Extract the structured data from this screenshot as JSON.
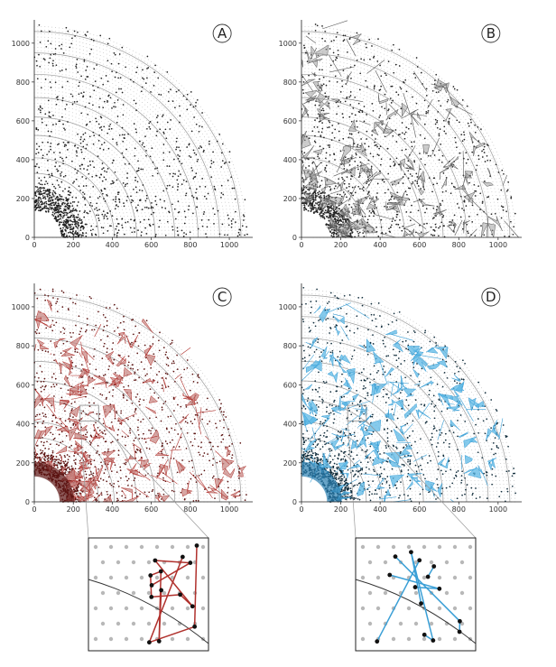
{
  "chart_data": [
    {
      "type": "scatter",
      "panel_label": "A",
      "xlim": [
        0,
        1120
      ],
      "ylim": [
        0,
        1120
      ],
      "x_ticks": [
        0,
        200,
        400,
        600,
        800,
        1000
      ],
      "y_ticks": [
        0,
        200,
        400,
        600,
        800,
        1000
      ],
      "detector_ring_radii": [
        165,
        230,
        330,
        410,
        525,
        620,
        720,
        840,
        950,
        1060
      ],
      "hit_color": "#111111",
      "grid_color": "#bdbdbd",
      "edges_shown": false
    },
    {
      "type": "scatter",
      "panel_label": "B",
      "xlim": [
        0,
        1120
      ],
      "ylim": [
        0,
        1120
      ],
      "x_ticks": [
        0,
        200,
        400,
        600,
        800,
        1000
      ],
      "y_ticks": [
        0,
        200,
        400,
        600,
        800,
        1000
      ],
      "detector_ring_radii": [
        165,
        230,
        330,
        410,
        525,
        620,
        720,
        840,
        950,
        1060
      ],
      "hit_color": "#111111",
      "edge_color": "#555555",
      "edges_shown": true
    },
    {
      "type": "scatter",
      "panel_label": "C",
      "xlim": [
        0,
        1120
      ],
      "ylim": [
        0,
        1120
      ],
      "x_ticks": [
        0,
        200,
        400,
        600,
        800,
        1000
      ],
      "y_ticks": [
        0,
        200,
        400,
        600,
        800,
        1000
      ],
      "detector_ring_radii": [
        165,
        230,
        330,
        410,
        525,
        620,
        720,
        840,
        950,
        1060
      ],
      "hit_color": "#111111",
      "edge_color": "#b0312d",
      "fill_color": "#c98a86",
      "edges_shown": true,
      "zoom_region": {
        "x": [
          235,
          330
        ],
        "y": [
          415,
          495
        ]
      }
    },
    {
      "type": "scatter",
      "panel_label": "D",
      "xlim": [
        0,
        1120
      ],
      "ylim": [
        0,
        1120
      ],
      "x_ticks": [
        0,
        200,
        400,
        600,
        800,
        1000
      ],
      "y_ticks": [
        0,
        200,
        400,
        600,
        800,
        1000
      ],
      "detector_ring_radii": [
        165,
        230,
        330,
        410,
        525,
        620,
        720,
        840,
        950,
        1060
      ],
      "hit_color": "#111111",
      "edge_color": "#3a9fd6",
      "fill_color": "#5cb8e6",
      "edges_shown": true,
      "zoom_region": {
        "x": [
          235,
          330
        ],
        "y": [
          415,
          495
        ]
      }
    }
  ]
}
